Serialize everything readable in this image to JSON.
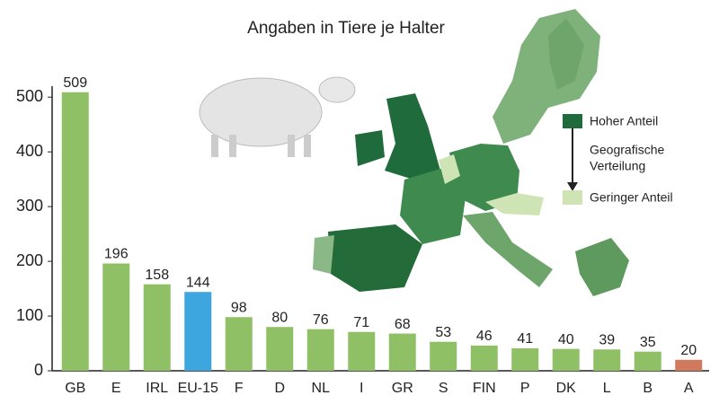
{
  "chart_data": {
    "type": "bar",
    "title": "Angaben in Tiere je Halter",
    "categories": [
      "GB",
      "E",
      "IRL",
      "EU-15",
      "F",
      "D",
      "NL",
      "I",
      "GR",
      "S",
      "FIN",
      "P",
      "DK",
      "L",
      "B",
      "A"
    ],
    "values": [
      509,
      196,
      158,
      144,
      98,
      80,
      76,
      71,
      68,
      53,
      46,
      41,
      40,
      39,
      35,
      20
    ],
    "colors": [
      "#8fc065",
      "#8fc065",
      "#8fc065",
      "#3ea6de",
      "#8fc065",
      "#8fc065",
      "#8fc065",
      "#8fc065",
      "#8fc065",
      "#8fc065",
      "#8fc065",
      "#8fc065",
      "#8fc065",
      "#8fc065",
      "#8fc065",
      "#d0795c"
    ],
    "ylim": [
      0,
      520
    ],
    "yticks": [
      0,
      100,
      200,
      300,
      400,
      500
    ],
    "grid": false,
    "map_legend": {
      "high": "Hoher Anteil",
      "middle": [
        "Geografische",
        "Verteilung"
      ],
      "low": "Geringer Anteil",
      "high_color": "#1f6b3b",
      "low_color": "#cfe4b4"
    }
  }
}
